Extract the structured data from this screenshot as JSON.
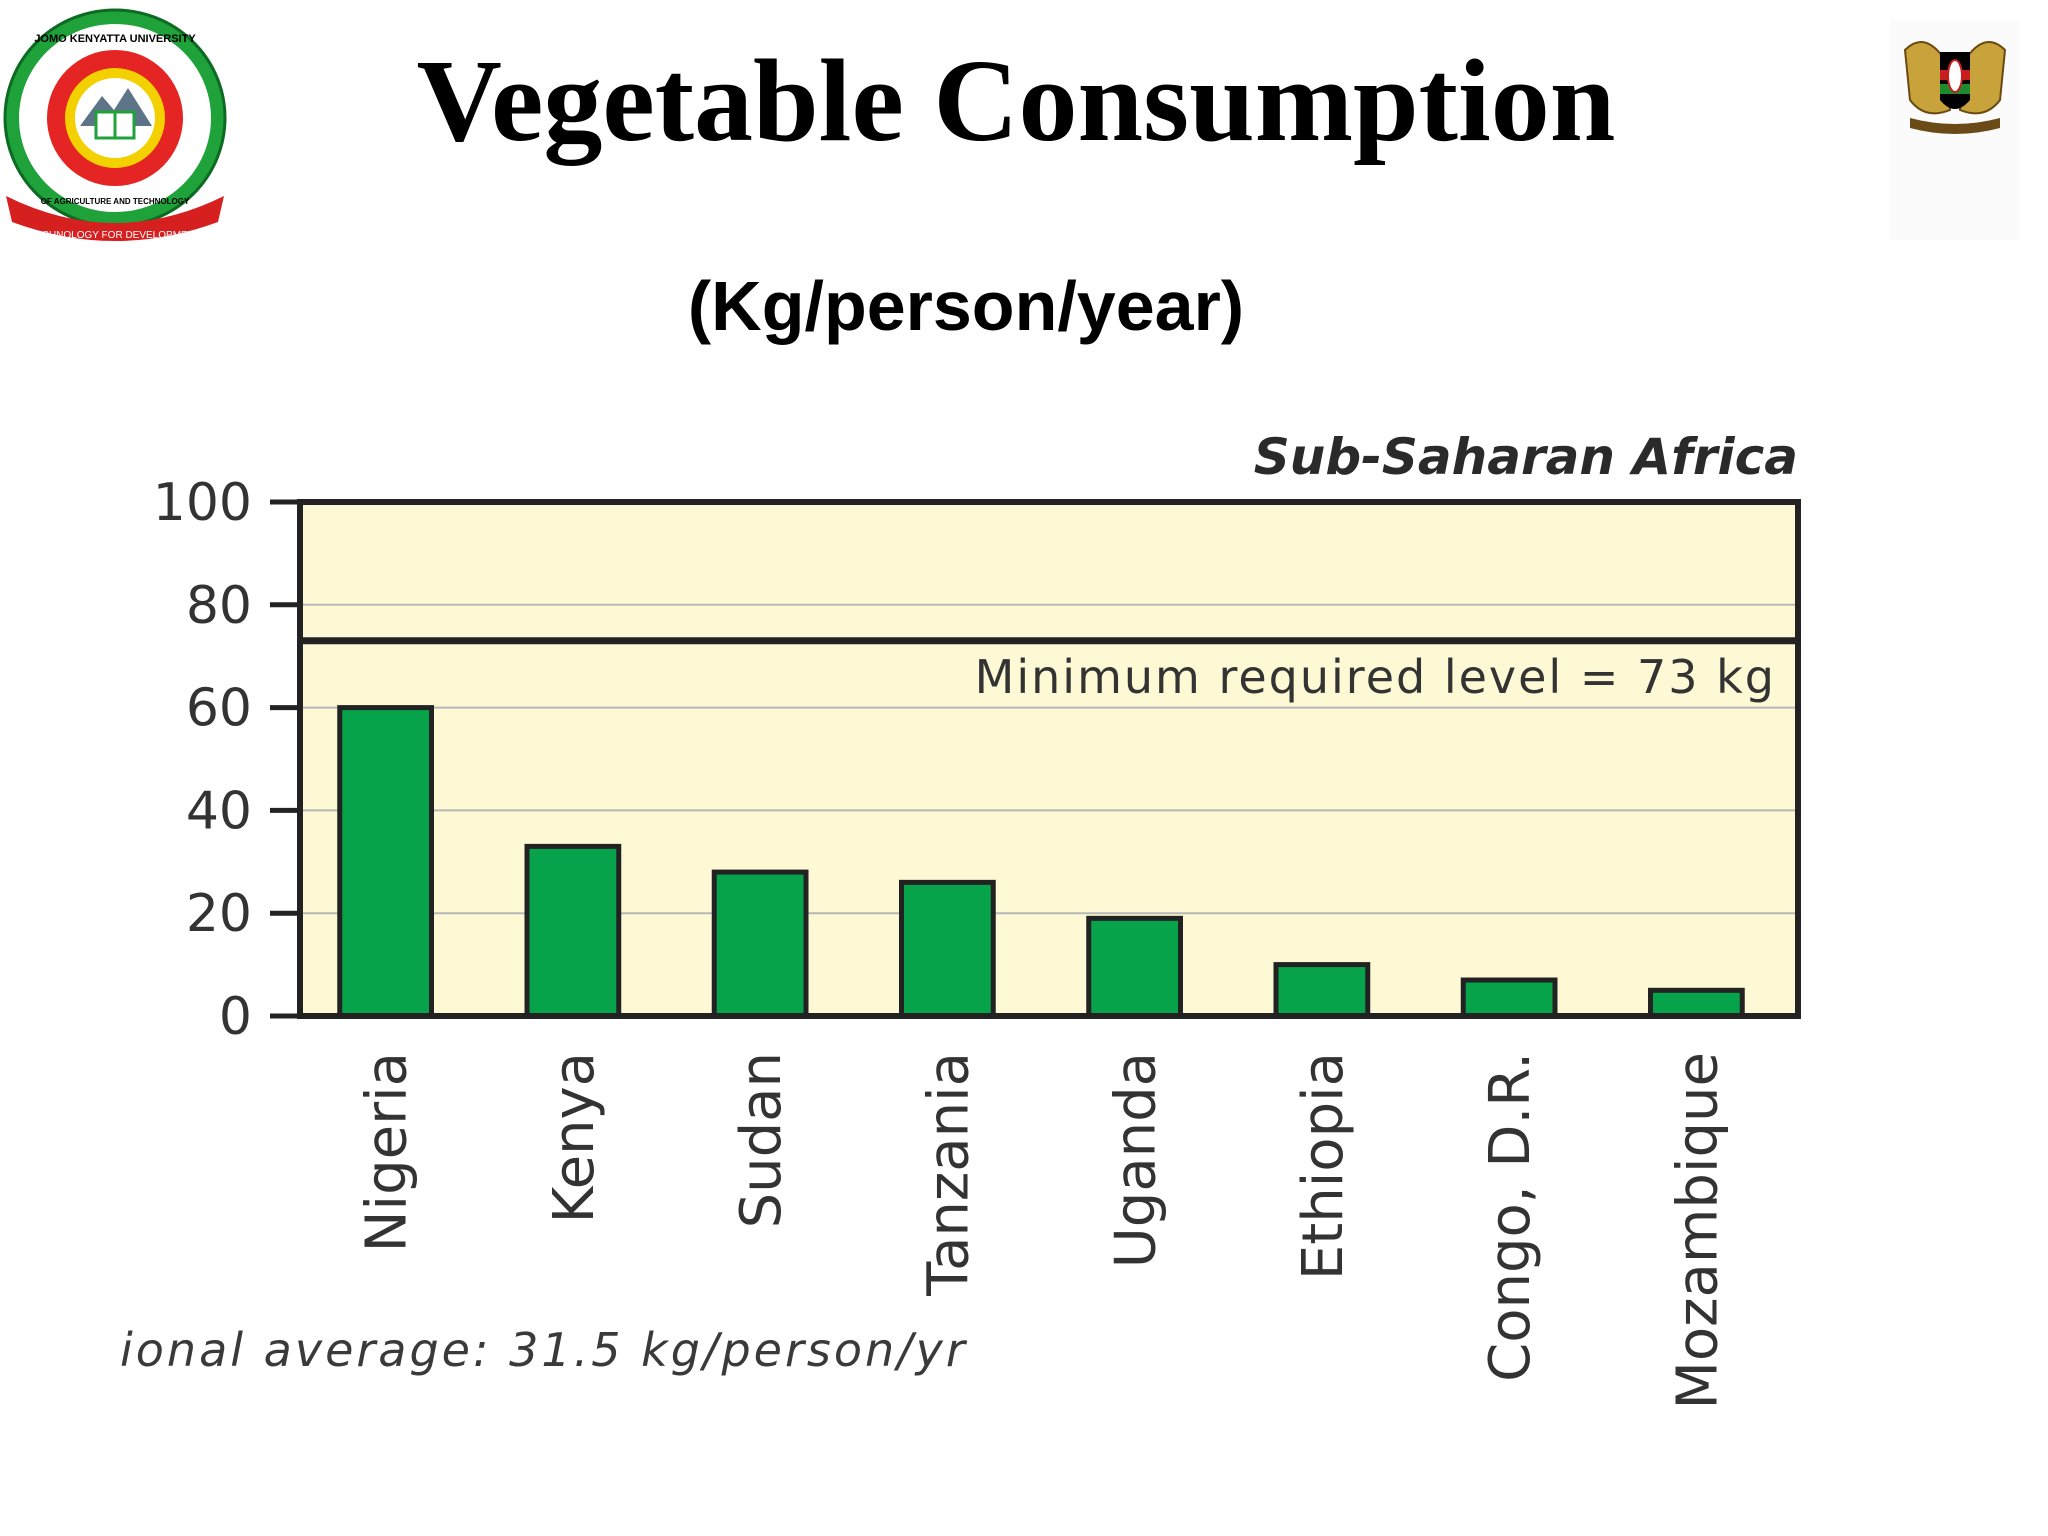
{
  "slide": {
    "title": "Vegetable Consumption",
    "subtitle": "(Kg/person/year)"
  },
  "logos": {
    "left": {
      "icon": "university-seal-icon",
      "arc_text_top": "JOMO KENYATTA UNIVERSITY",
      "arc_text_bottom": "OF AGRICULTURE AND TECHNOLOGY",
      "ribbon_text": "TECHNOLOGY FOR DEVELOPMENT"
    },
    "right": {
      "icon": "coat-of-arms-icon"
    }
  },
  "chart_data": {
    "type": "bar",
    "title": "Sub-Saharan Africa",
    "xlabel": "",
    "ylabel": "",
    "categories": [
      "Nigeria",
      "Kenya",
      "Sudan",
      "Tanzania",
      "Uganda",
      "Ethiopia",
      "Congo, D.R.",
      "Mozambique"
    ],
    "values": [
      60,
      33,
      28,
      26,
      19,
      10,
      7,
      5
    ],
    "ylim": [
      0,
      100
    ],
    "yticks": [
      "0",
      "20",
      "40",
      "60",
      "80",
      "100"
    ],
    "grid": true,
    "reference_line": {
      "value": 73,
      "label": "Minimum required level = 73 kg"
    },
    "footnote": "ional average: 31.5 kg/person/yr",
    "colors": {
      "bar": "#06a34a",
      "plot_background": "#fdf9d5",
      "frame": "#222222",
      "grid": "#b8b8b8"
    }
  }
}
